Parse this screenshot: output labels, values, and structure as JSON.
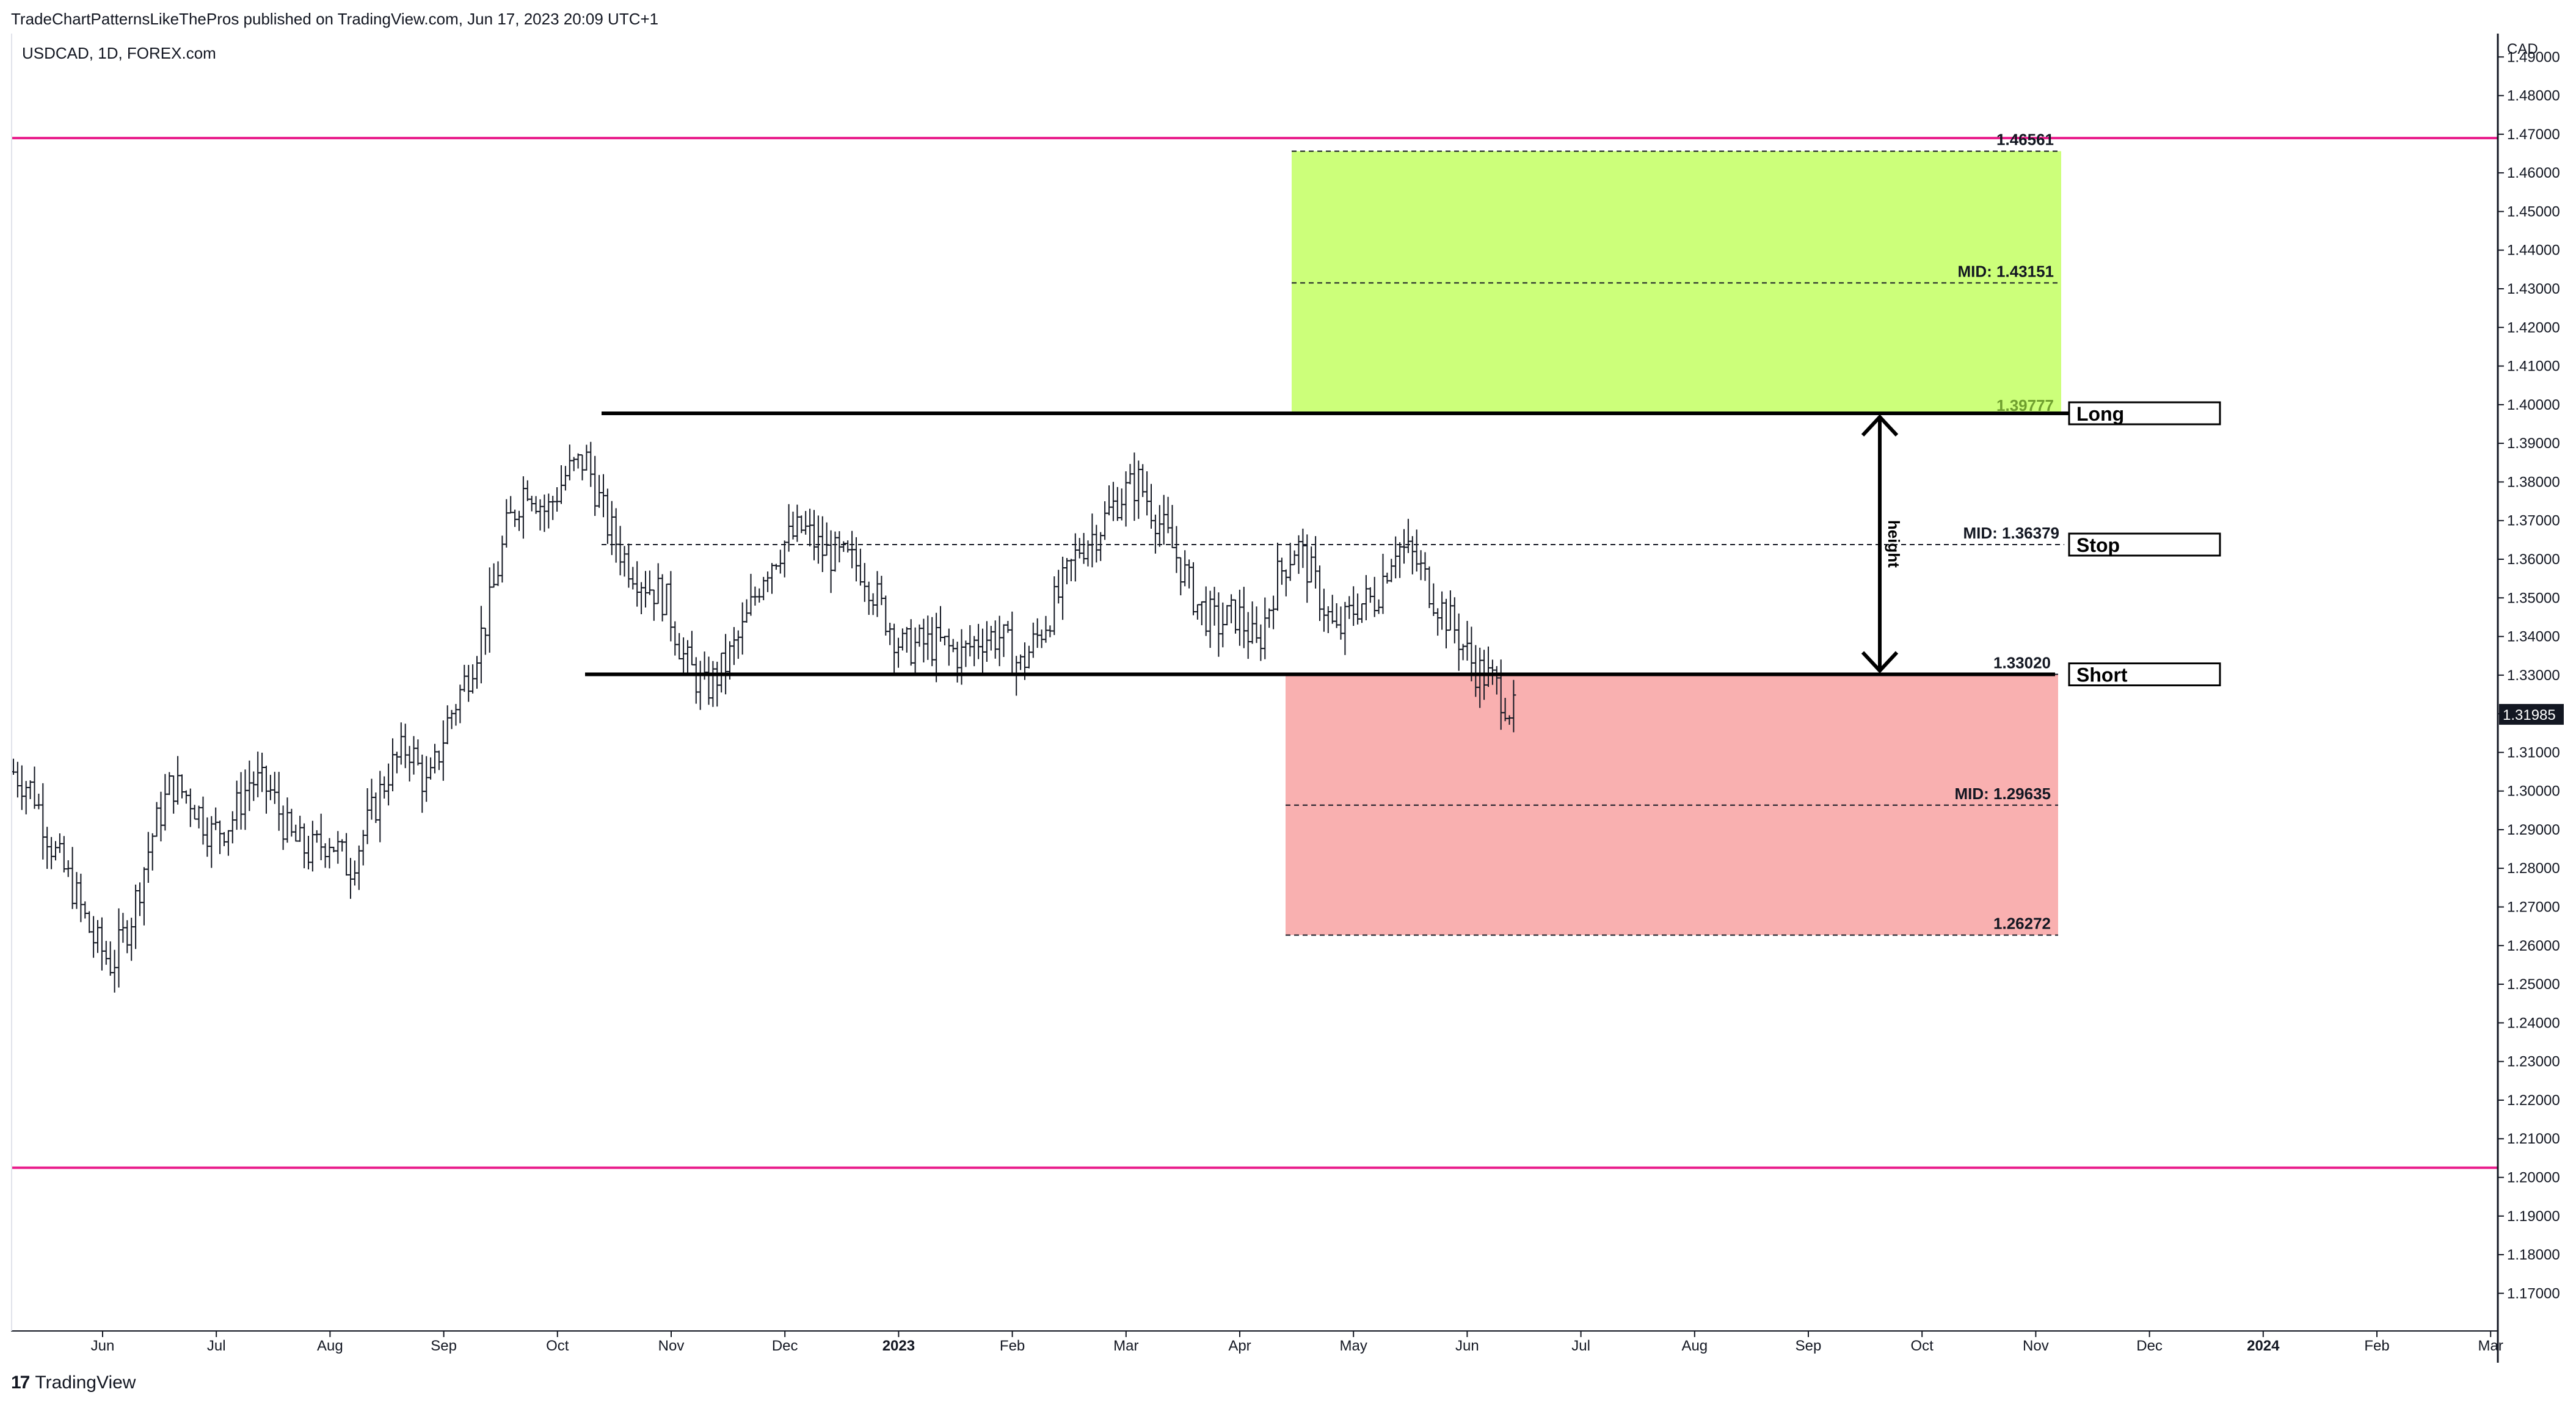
{
  "header": {
    "published": "TradeChartPatternsLikeThePros published on TradingView.com, Jun 17, 2023 20:09 UTC+1",
    "symbol": "USDCAD, 1D, FOREX.com"
  },
  "footer": {
    "brand": "TradingView",
    "logo_icon": "tradingview-logo-icon",
    "logo_text": "17"
  },
  "colors": {
    "green_zone": "#ccff7a",
    "red_zone": "#f9b0b0",
    "magenta": "#e91e8c",
    "price_badge": "#131722",
    "bars": "#131722"
  },
  "chart_data": {
    "type": "ohlc",
    "symbol": "USDCAD",
    "timeframe": "1D",
    "currency_label": "CAD",
    "current_price": "1.31985",
    "ylim": [
      1.165,
      1.5
    ],
    "y_ticks": [
      "1.17000",
      "1.18000",
      "1.19000",
      "1.20000",
      "1.21000",
      "1.22000",
      "1.23000",
      "1.24000",
      "1.25000",
      "1.26000",
      "1.27000",
      "1.28000",
      "1.29000",
      "1.30000",
      "1.31000",
      "1.32000",
      "1.33000",
      "1.34000",
      "1.35000",
      "1.36000",
      "1.37000",
      "1.38000",
      "1.39000",
      "1.40000",
      "1.41000",
      "1.42000",
      "1.43000",
      "1.44000",
      "1.45000",
      "1.46000",
      "1.47000",
      "1.48000",
      "1.49000"
    ],
    "x_ticks": [
      {
        "label": "Jun",
        "bold": false
      },
      {
        "label": "Jul",
        "bold": false
      },
      {
        "label": "Aug",
        "bold": false
      },
      {
        "label": "Sep",
        "bold": false
      },
      {
        "label": "Oct",
        "bold": false
      },
      {
        "label": "Nov",
        "bold": false
      },
      {
        "label": "Dec",
        "bold": false
      },
      {
        "label": "2023",
        "bold": true
      },
      {
        "label": "Feb",
        "bold": false
      },
      {
        "label": "Mar",
        "bold": false
      },
      {
        "label": "Apr",
        "bold": false
      },
      {
        "label": "May",
        "bold": false
      },
      {
        "label": "Jun",
        "bold": false
      },
      {
        "label": "Jul",
        "bold": false
      },
      {
        "label": "Aug",
        "bold": false
      },
      {
        "label": "Sep",
        "bold": false
      },
      {
        "label": "Oct",
        "bold": false
      },
      {
        "label": "Nov",
        "bold": false
      },
      {
        "label": "Dec",
        "bold": false
      },
      {
        "label": "2024",
        "bold": true
      },
      {
        "label": "Feb",
        "bold": false
      },
      {
        "label": "Mar",
        "bold": false
      }
    ],
    "price_path": [
      1.305,
      1.3,
      1.285,
      1.275,
      1.262,
      1.255,
      1.268,
      1.288,
      1.302,
      1.298,
      1.289,
      1.292,
      1.303,
      1.3,
      1.288,
      1.284,
      1.288,
      1.28,
      1.292,
      1.305,
      1.312,
      1.3,
      1.318,
      1.33,
      1.345,
      1.368,
      1.38,
      1.372,
      1.382,
      1.386,
      1.37,
      1.36,
      1.354,
      1.35,
      1.334,
      1.326,
      1.332,
      1.342,
      1.357,
      1.364,
      1.368,
      1.362,
      1.36,
      1.358,
      1.347,
      1.337,
      1.338,
      1.338,
      1.335,
      1.34,
      1.34,
      1.332,
      1.341,
      1.351,
      1.363,
      1.368,
      1.376,
      1.38,
      1.37,
      1.36,
      1.348,
      1.343,
      1.346,
      1.337,
      1.355,
      1.364,
      1.353,
      1.34,
      1.348,
      1.35,
      1.364,
      1.36,
      1.35,
      1.342,
      1.332,
      1.328,
      1.32
    ],
    "horizontal_lines": [
      {
        "name": "upper-magenta",
        "price": 1.469
      },
      {
        "name": "lower-magenta",
        "price": 1.2025
      }
    ],
    "pattern_lines": [
      {
        "name": "resistance",
        "price": 1.39777
      },
      {
        "name": "support",
        "price": 1.3302
      },
      {
        "name": "midline",
        "price": 1.36379
      }
    ],
    "zones": [
      {
        "name": "long-target",
        "top": 1.46561,
        "mid": 1.43151,
        "bottom": 1.39777,
        "top_label": "1.46561",
        "mid_label": "MID: 1.43151",
        "bottom_label": "1.39777"
      },
      {
        "name": "short-target",
        "top": 1.3302,
        "mid": 1.29635,
        "bottom": 1.26272,
        "top_label": "1.33020",
        "mid_label": "MID: 1.29635",
        "bottom_label": "1.26272"
      }
    ],
    "mid_label_range": "MID: 1.36379",
    "height_label": "height",
    "tags": [
      {
        "label": "Long",
        "price": 1.39777
      },
      {
        "label": "Stop",
        "price": 1.36379
      },
      {
        "label": "Short",
        "price": 1.3302
      }
    ]
  }
}
